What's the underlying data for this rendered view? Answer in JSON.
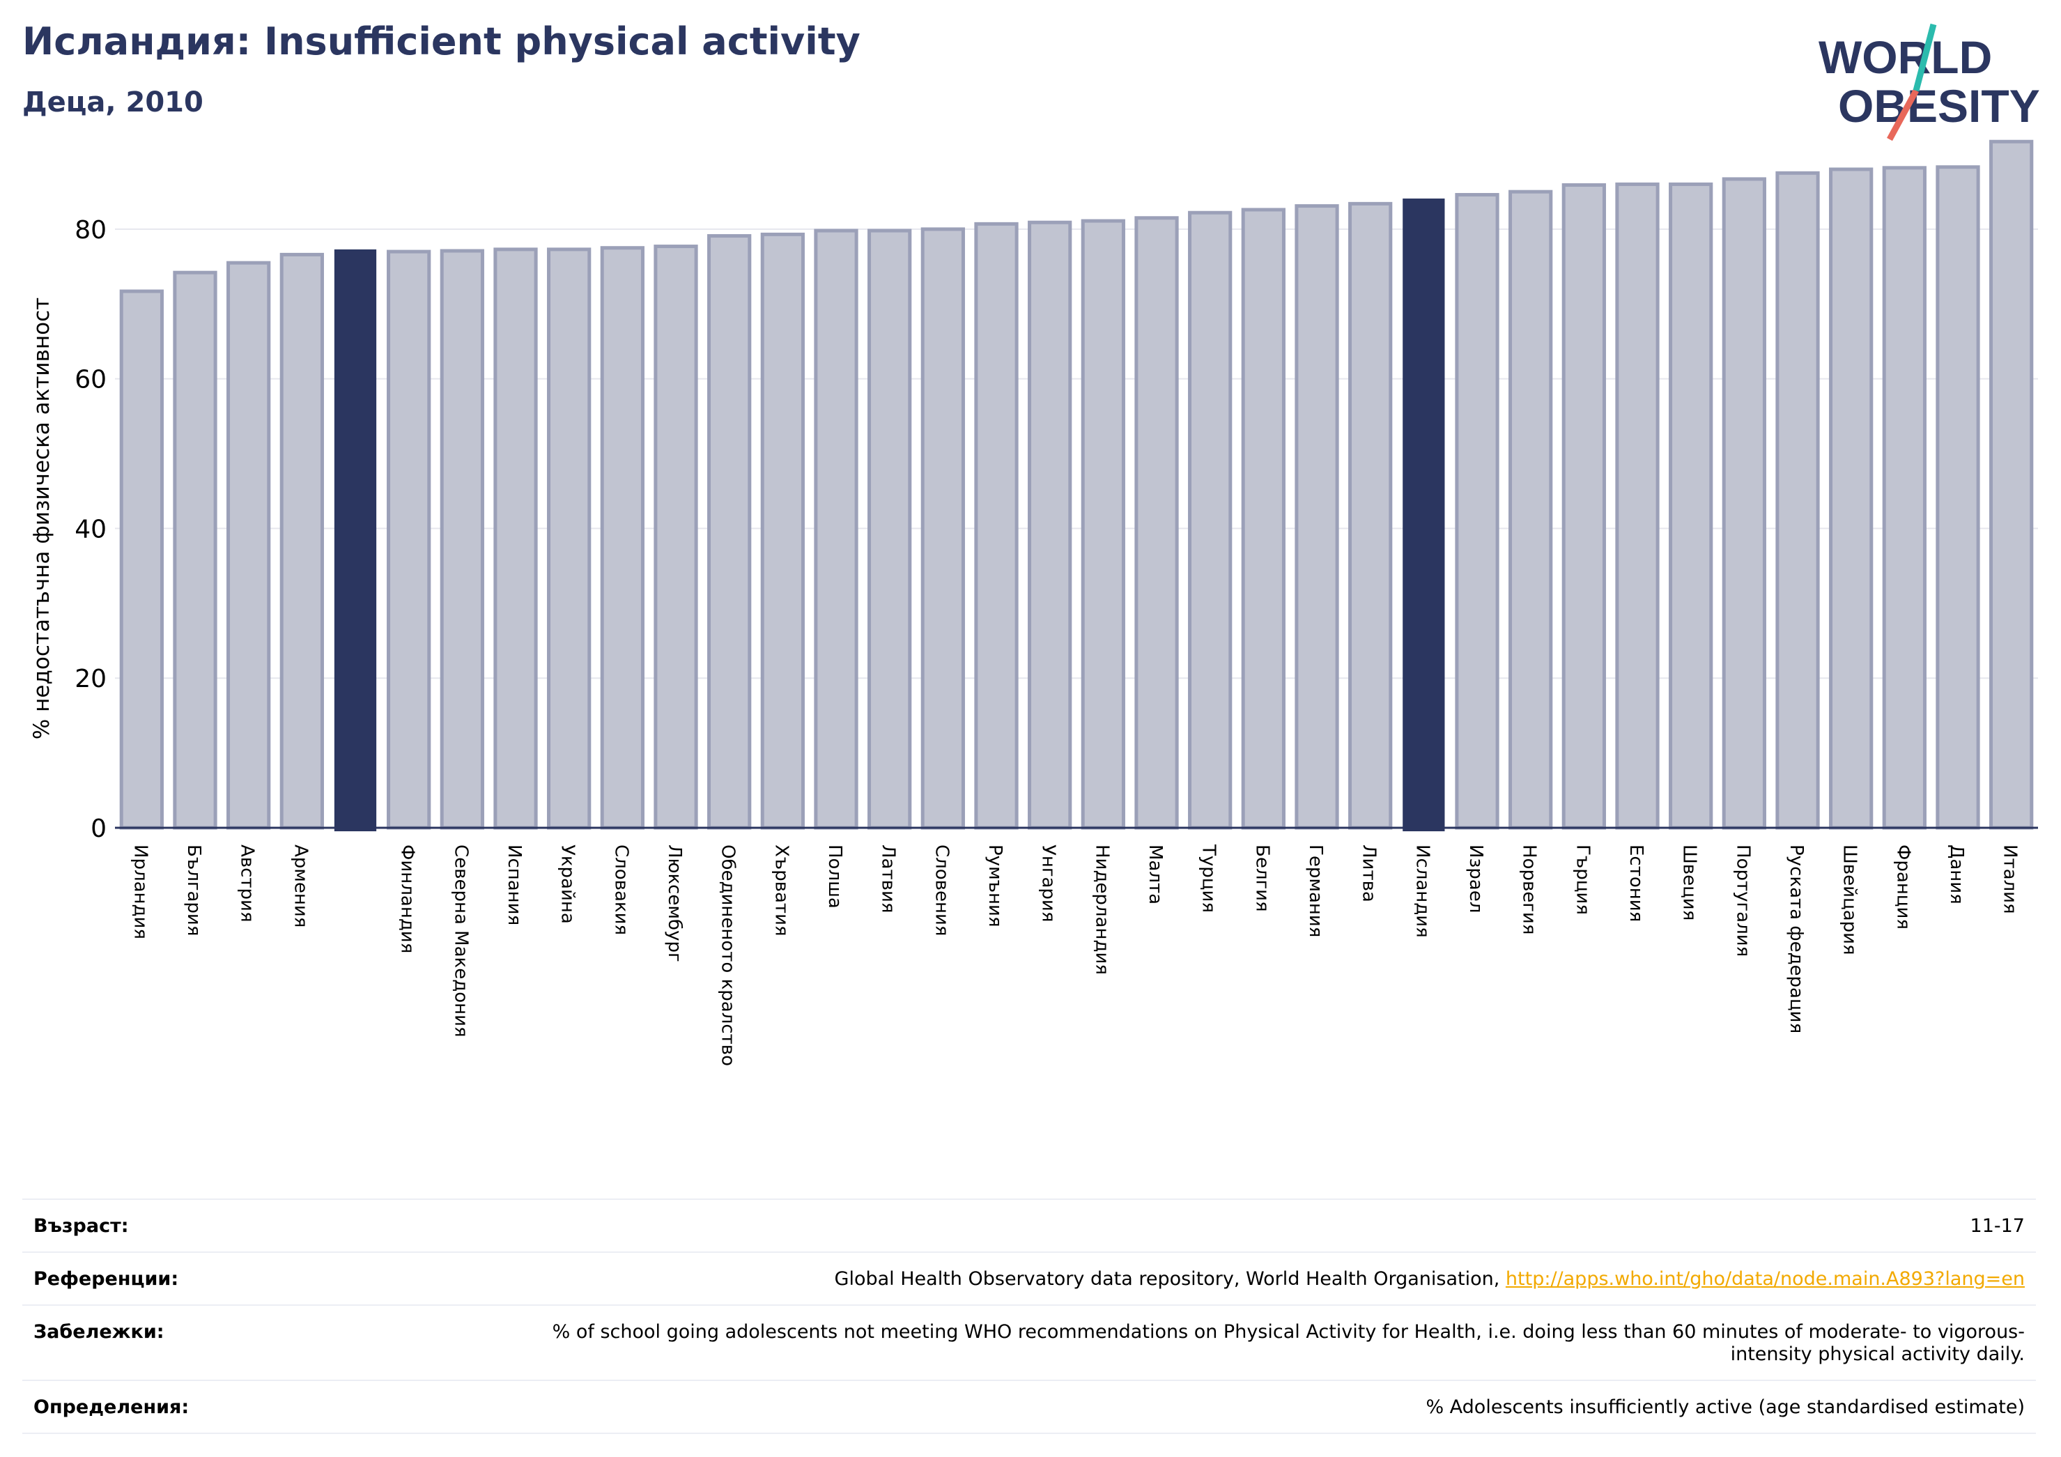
{
  "header": {
    "title": "Исландия: Insufficient physical activity",
    "subtitle": "Деца, 2010"
  },
  "logo": {
    "line1": "WORLD",
    "line2": "OBESITY"
  },
  "colors": {
    "highlight": "#2b3660",
    "bar": "#c1c4d1",
    "bar_edge": "#9ba0b8",
    "accent_teal": "#2bbbad",
    "accent_coral": "#e8685a",
    "link": "#f2a900"
  },
  "chart_data": {
    "type": "bar",
    "ylabel": "% недостатъчна физическа активност",
    "ylim": [
      0,
      92
    ],
    "yticks": [
      0,
      20,
      40,
      60,
      80
    ],
    "grid": true,
    "categories": [
      "Ирландия",
      "България",
      "Австрия",
      "Армения",
      "",
      "Финландия",
      "Северна Македония",
      "Испания",
      "Украйна",
      "Словакия",
      "Люксембург",
      "Обединеното кралство",
      "Хърватия",
      "Полша",
      "Латвия",
      "Словения",
      "Румъния",
      "Унгария",
      "Нидерландия",
      "Малта",
      "Турция",
      "Белгия",
      "Германия",
      "Литва",
      "Исландия",
      "Израел",
      "Норвегия",
      "Гърция",
      "Естония",
      "Швеция",
      "Португалия",
      "Руската федерация",
      "Швейцария",
      "Франция",
      "Дания",
      "Италия"
    ],
    "values": [
      71.7,
      74.2,
      75.5,
      76.6,
      77.2,
      77.0,
      77.1,
      77.3,
      77.3,
      77.5,
      77.7,
      79.1,
      79.3,
      79.8,
      79.8,
      80.0,
      80.7,
      80.9,
      81.1,
      81.5,
      82.2,
      82.6,
      83.1,
      83.4,
      84.0,
      84.6,
      85.0,
      85.9,
      86.0,
      86.0,
      86.7,
      87.5,
      88.0,
      88.2,
      88.3,
      91.7
    ],
    "highlighted": [
      4,
      24
    ]
  },
  "meta": [
    {
      "key": "Възраст:",
      "value": "11-17"
    },
    {
      "key": "Референции:",
      "value": "Global Health Observatory data repository, World Health Organisation, ",
      "link": "http://apps.who.int/gho/data/node.main.A893?lang=en"
    },
    {
      "key": "Забележки:",
      "value": "% of school going adolescents not meeting WHO recommendations on Physical Activity for Health, i.e. doing less than 60 minutes of moderate- to vigorous-intensity physical activity daily."
    },
    {
      "key": "Определения:",
      "value": "% Adolescents insufficiently active (age standardised estimate)"
    }
  ]
}
